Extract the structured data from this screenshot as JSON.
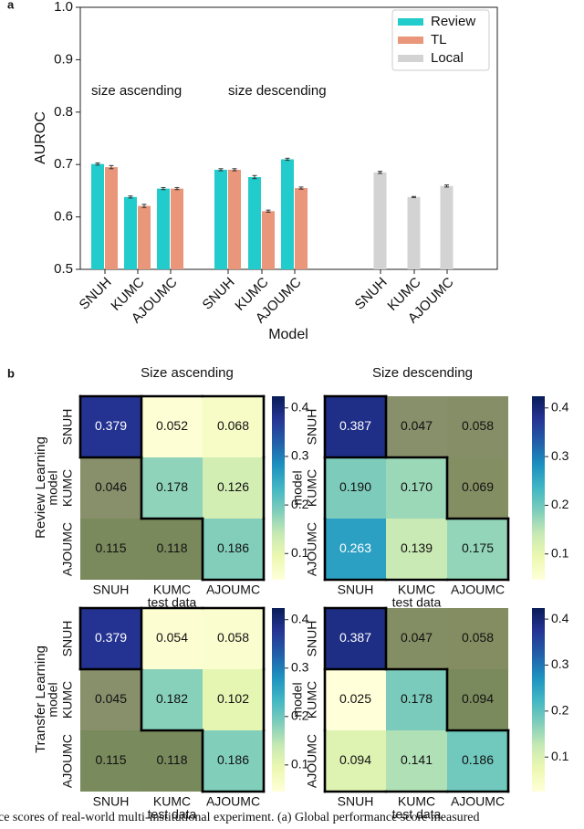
{
  "panel_labels": [
    "a",
    "b"
  ],
  "column_titles": [
    "Size ascending",
    "Size descending"
  ],
  "row_titles": [
    "Review Learning",
    "Transfer Learning"
  ],
  "caption": "ce scores of real-world multi-institutional experiment. (a) Global performance score measured",
  "chart_data": [
    {
      "type": "bar",
      "y_label": "AUROC",
      "x_label": "Model",
      "categories": [
        "SNUH",
        "KUMC",
        "AJOUMC",
        "SNUH",
        "KUMC",
        "AJOUMC",
        "SNUH",
        "KUMC",
        "AJOUMC"
      ],
      "annotations": [
        "size ascending",
        "size descending"
      ],
      "series": [
        {
          "name": "Review",
          "color": "#22cccc",
          "values": [
            0.701,
            0.638,
            0.654,
            0.69,
            0.676,
            0.71,
            null,
            null,
            null
          ],
          "errors": [
            0.002,
            0.002,
            0.002,
            0.002,
            0.003,
            0.002,
            null,
            null,
            null
          ]
        },
        {
          "name": "TL",
          "color": "#e9967a",
          "values": [
            0.695,
            0.621,
            0.654,
            0.69,
            0.611,
            0.655,
            null,
            null,
            null
          ],
          "errors": [
            0.003,
            0.003,
            0.002,
            0.002,
            0.002,
            0.002,
            null,
            null,
            null
          ]
        },
        {
          "name": "Local",
          "color": "#d3d3d3",
          "values": [
            null,
            null,
            null,
            null,
            null,
            null,
            0.685,
            0.638,
            0.659
          ],
          "errors": [
            null,
            null,
            null,
            null,
            null,
            null,
            0.002,
            0.001,
            0.002
          ]
        }
      ],
      "ylim": [
        0.5,
        1.0
      ],
      "yticks": [
        0.5,
        0.6,
        0.7,
        0.8,
        0.9,
        {
          "value": 1.0,
          "label": "1.0"
        }
      ],
      "legend": "upper right"
    },
    {
      "type": "heatmap",
      "colormap": "YlGnBu",
      "x_label": "test data",
      "y_label": "model",
      "x_categories": [
        "SNUH",
        "KUMC",
        "AJOUMC"
      ],
      "y_categories": [
        "SNUH",
        "KUMC",
        "AJOUMC"
      ],
      "values": [
        [
          0.379,
          0.052,
          0.068
        ],
        [
          0.046,
          0.178,
          0.126
        ],
        [
          0.115,
          0.118,
          0.186
        ]
      ],
      "value_labels": [
        [
          "0.379",
          "0.052",
          "0.068"
        ],
        [
          "0.046",
          "0.178",
          "0.126"
        ],
        [
          "0.115",
          "0.118",
          "0.186"
        ]
      ],
      "dimmed": [
        [
          false,
          false,
          false
        ],
        [
          true,
          false,
          false
        ],
        [
          true,
          true,
          false
        ]
      ],
      "clim": [
        0.046,
        0.424
      ],
      "colorbar_ticks": [
        0.1,
        0.2,
        0.3,
        0.4
      ]
    },
    {
      "type": "heatmap",
      "colormap": "YlGnBu",
      "x_label": "test data",
      "y_label": "model",
      "x_categories": [
        "SNUH",
        "KUMC",
        "AJOUMC"
      ],
      "y_categories": [
        "SNUH",
        "KUMC",
        "AJOUMC"
      ],
      "values": [
        [
          0.387,
          0.047,
          0.058
        ],
        [
          0.19,
          0.17,
          0.069
        ],
        [
          0.263,
          0.139,
          0.175
        ]
      ],
      "value_labels": [
        [
          "0.387",
          "0.047",
          "0.058"
        ],
        [
          "0.190",
          "0.170",
          "0.069"
        ],
        [
          "0.263",
          "0.139",
          "0.175"
        ]
      ],
      "dimmed": [
        [
          false,
          true,
          true
        ],
        [
          false,
          false,
          true
        ],
        [
          false,
          false,
          false
        ]
      ],
      "clim": [
        0.047,
        0.424
      ],
      "colorbar_ticks": [
        0.1,
        0.2,
        0.3,
        0.4
      ]
    },
    {
      "type": "heatmap",
      "colormap": "YlGnBu",
      "x_label": "test data",
      "y_label": "model",
      "x_categories": [
        "SNUH",
        "KUMC",
        "AJOUMC"
      ],
      "y_categories": [
        "SNUH",
        "KUMC",
        "AJOUMC"
      ],
      "values": [
        [
          0.379,
          0.054,
          0.058
        ],
        [
          0.045,
          0.182,
          0.102
        ],
        [
          0.115,
          0.118,
          0.186
        ]
      ],
      "value_labels": [
        [
          "0.379",
          "0.054",
          "0.058"
        ],
        [
          "0.045",
          "0.182",
          "0.102"
        ],
        [
          "0.115",
          "0.118",
          "0.186"
        ]
      ],
      "dimmed": [
        [
          false,
          false,
          false
        ],
        [
          true,
          false,
          false
        ],
        [
          true,
          true,
          false
        ]
      ],
      "clim": [
        0.045,
        0.424
      ],
      "colorbar_ticks": [
        0.1,
        0.2,
        0.3,
        0.4
      ]
    },
    {
      "type": "heatmap",
      "colormap": "YlGnBu",
      "x_label": "test data",
      "y_label": "model",
      "x_categories": [
        "SNUH",
        "KUMC",
        "AJOUMC"
      ],
      "y_categories": [
        "SNUH",
        "KUMC",
        "AJOUMC"
      ],
      "values": [
        [
          0.387,
          0.047,
          0.058
        ],
        [
          0.025,
          0.178,
          0.094
        ],
        [
          0.094,
          0.141,
          0.186
        ]
      ],
      "value_labels": [
        [
          "0.387",
          "0.047",
          "0.058"
        ],
        [
          "0.025",
          "0.178",
          "0.094"
        ],
        [
          "0.094",
          "0.141",
          "0.186"
        ]
      ],
      "dimmed": [
        [
          false,
          true,
          true
        ],
        [
          false,
          false,
          true
        ],
        [
          false,
          false,
          false
        ]
      ],
      "clim": [
        0.025,
        0.424
      ],
      "colorbar_ticks": [
        0.1,
        0.2,
        0.3,
        0.4
      ]
    }
  ]
}
